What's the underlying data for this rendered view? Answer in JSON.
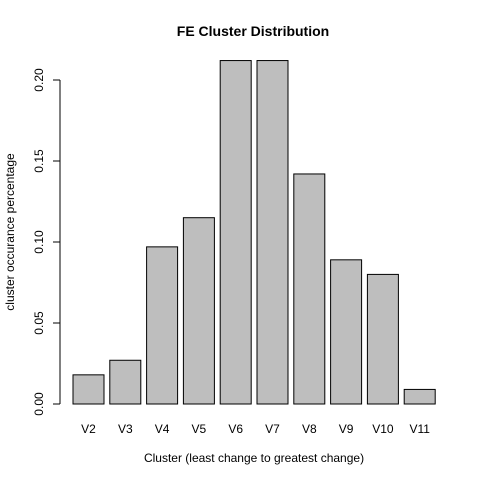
{
  "chart_data": {
    "type": "bar",
    "title": "FE Cluster Distribution",
    "xlabel": "Cluster (least change to greatest change)",
    "ylabel": "cluster occurance percentage",
    "categories": [
      "V2",
      "V3",
      "V4",
      "V5",
      "V6",
      "V7",
      "V8",
      "V9",
      "V10",
      "V11"
    ],
    "values": [
      0.018,
      0.027,
      0.097,
      0.115,
      0.212,
      0.212,
      0.142,
      0.089,
      0.08,
      0.009
    ],
    "ylim": [
      0,
      0.2
    ],
    "yticks": [
      {
        "value": 0.0,
        "label": "0.00"
      },
      {
        "value": 0.05,
        "label": "0.05"
      },
      {
        "value": 0.1,
        "label": "0.10"
      },
      {
        "value": 0.15,
        "label": "0.15"
      },
      {
        "value": 0.2,
        "label": "0.20"
      }
    ],
    "bar_fill": "#bebebe",
    "bar_stroke": "#000000",
    "grid": false,
    "legend": "none"
  }
}
